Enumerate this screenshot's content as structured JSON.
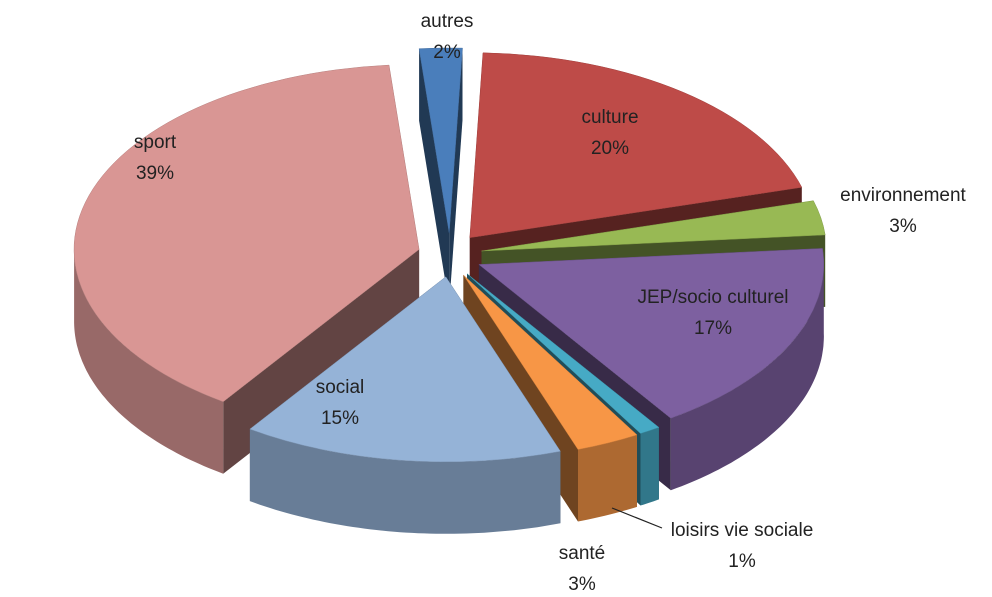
{
  "chart_data": {
    "type": "pie3d",
    "categories": [
      "autres",
      "culture",
      "environnement",
      "JEP/socio culturel",
      "loisirs vie sociale",
      "santé",
      "social",
      "sport"
    ],
    "values": [
      2,
      20,
      3,
      17,
      1,
      3,
      15,
      39
    ],
    "value_labels": [
      "2%",
      "20%",
      "3%",
      "17%",
      "1%",
      "3%",
      "15%",
      "39%"
    ],
    "colors": [
      "#4a7ebb",
      "#be4b48",
      "#98b954",
      "#7d60a0",
      "#46aac5",
      "#f79646",
      "#95b3d7",
      "#d99694"
    ]
  }
}
